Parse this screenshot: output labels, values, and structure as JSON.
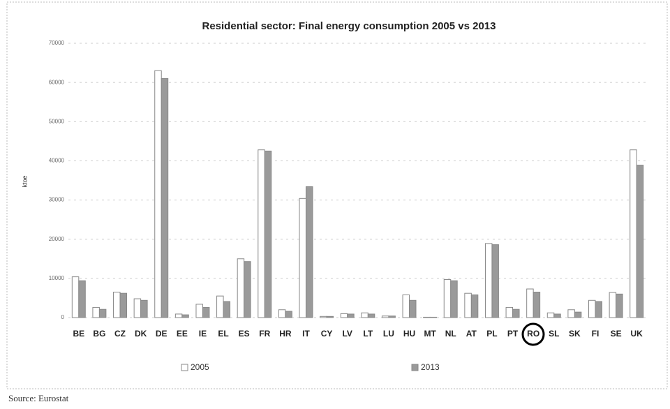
{
  "chart_data": {
    "type": "bar",
    "title": "Residential sector: Final energy consumption 2005 vs 2013",
    "y_label": "ktoe",
    "categories": [
      "BE",
      "BG",
      "CZ",
      "DK",
      "DE",
      "EE",
      "IE",
      "EL",
      "ES",
      "FR",
      "HR",
      "IT",
      "CY",
      "LV",
      "LT",
      "LU",
      "HU",
      "MT",
      "NL",
      "AT",
      "PL",
      "PT",
      "RO",
      "SL",
      "SK",
      "FI",
      "SE",
      "UK"
    ],
    "series": [
      {
        "name": "2005",
        "color": "#ffffff",
        "values": [
          10400,
          2600,
          6500,
          4800,
          63000,
          900,
          3400,
          5500,
          15000,
          42800,
          2000,
          30400,
          300,
          1000,
          1200,
          400,
          5800,
          100,
          9700,
          6200,
          18900,
          2600,
          7300,
          1200,
          2000,
          4400,
          6400,
          42800
        ]
      },
      {
        "name": "2013",
        "color": "#9a9a9a",
        "values": [
          9400,
          2100,
          6200,
          4400,
          61000,
          700,
          2600,
          4100,
          14300,
          42500,
          1600,
          33400,
          300,
          900,
          900,
          400,
          4400,
          100,
          9400,
          5800,
          18600,
          2100,
          6500,
          900,
          1400,
          4100,
          6000,
          38900
        ]
      }
    ],
    "ylim": [
      0,
      70000
    ],
    "yticks": [
      0,
      10000,
      20000,
      30000,
      40000,
      50000,
      60000,
      70000
    ],
    "grid": true
  },
  "source": "Source: Eurostat"
}
